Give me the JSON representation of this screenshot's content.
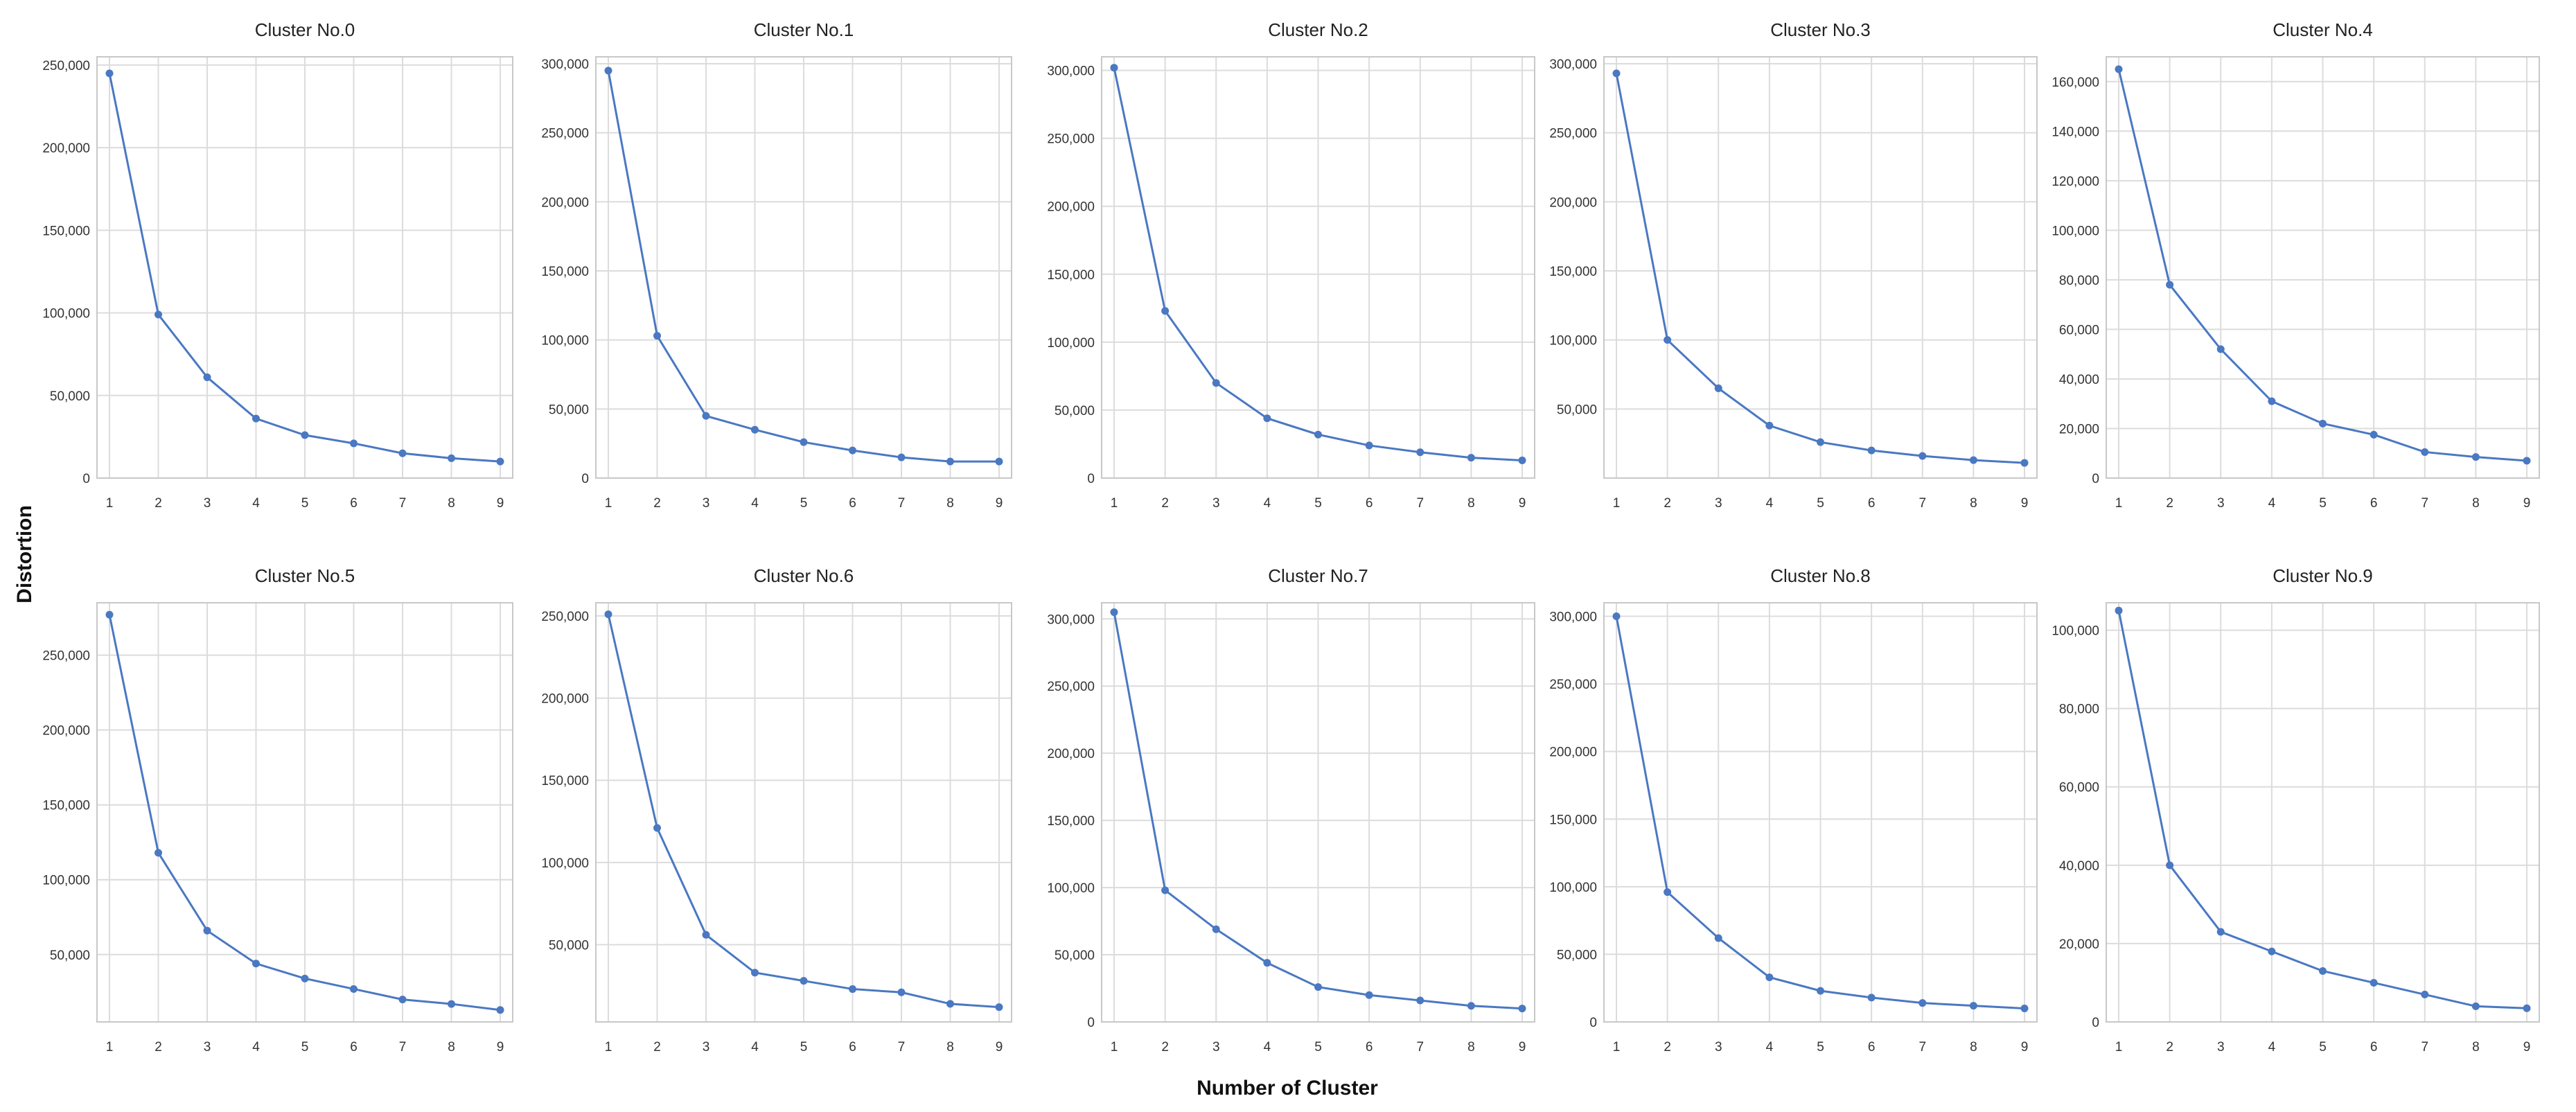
{
  "ylabel": "Distortion",
  "xlabel": "Number of Cluster",
  "line_color": "#4a78c2",
  "chart_data": [
    {
      "type": "line",
      "title": "Cluster No.0",
      "categories": [
        1,
        2,
        3,
        4,
        5,
        6,
        7,
        8,
        9
      ],
      "values": [
        245000,
        99000,
        61000,
        36000,
        26000,
        21000,
        15000,
        12000,
        10000
      ],
      "ylim": [
        0,
        255000
      ],
      "yticks": [
        0,
        50000,
        100000,
        150000,
        200000,
        250000
      ],
      "yticklabels": [
        "0",
        "50,000",
        "100,000",
        "150,000",
        "200,000",
        "250,000"
      ]
    },
    {
      "type": "line",
      "title": "Cluster No.1",
      "categories": [
        1,
        2,
        3,
        4,
        5,
        6,
        7,
        8,
        9
      ],
      "values": [
        295000,
        103000,
        45000,
        35000,
        26000,
        20000,
        15000,
        12000,
        12000
      ],
      "ylim": [
        0,
        305000
      ],
      "yticks": [
        0,
        50000,
        100000,
        150000,
        200000,
        250000,
        300000
      ],
      "yticklabels": [
        "0",
        "50,000",
        "100,000",
        "150,000",
        "200,000",
        "250,000",
        "300,000"
      ]
    },
    {
      "type": "line",
      "title": "Cluster No.2",
      "categories": [
        1,
        2,
        3,
        4,
        5,
        6,
        7,
        8,
        9
      ],
      "values": [
        302000,
        123000,
        70000,
        44000,
        32000,
        24000,
        19000,
        15000,
        13000
      ],
      "ylim": [
        0,
        310000
      ],
      "yticks": [
        0,
        50000,
        100000,
        150000,
        200000,
        250000,
        300000
      ],
      "yticklabels": [
        "0",
        "50,000",
        "100,000",
        "150,000",
        "200,000",
        "250,000",
        "300,000"
      ]
    },
    {
      "type": "line",
      "title": "Cluster No.3",
      "categories": [
        1,
        2,
        3,
        4,
        5,
        6,
        7,
        8,
        9
      ],
      "values": [
        293000,
        100000,
        65000,
        38000,
        26000,
        20000,
        16000,
        13000,
        11000
      ],
      "ylim": [
        0,
        305000
      ],
      "yticks": [
        50000,
        100000,
        150000,
        200000,
        250000,
        300000
      ],
      "yticklabels": [
        "50,000",
        "100,000",
        "150,000",
        "200,000",
        "250,000",
        "300,000"
      ]
    },
    {
      "type": "line",
      "title": "Cluster No.4",
      "categories": [
        1,
        2,
        3,
        4,
        5,
        6,
        7,
        8,
        9
      ],
      "values": [
        165000,
        78000,
        52000,
        31000,
        22000,
        17500,
        10500,
        8500,
        7000
      ],
      "ylim": [
        0,
        170000
      ],
      "yticks": [
        0,
        20000,
        40000,
        60000,
        80000,
        100000,
        120000,
        140000,
        160000
      ],
      "yticklabels": [
        "0",
        "20,000",
        "40,000",
        "60,000",
        "80,000",
        "100,000",
        "120,000",
        "140,000",
        "160,000"
      ]
    },
    {
      "type": "line",
      "title": "Cluster No.5",
      "categories": [
        1,
        2,
        3,
        4,
        5,
        6,
        7,
        8,
        9
      ],
      "values": [
        277000,
        118000,
        66000,
        44000,
        34000,
        27000,
        20000,
        17000,
        13000
      ],
      "ylim": [
        5000,
        285000
      ],
      "yticks": [
        50000,
        100000,
        150000,
        200000,
        250000
      ],
      "yticklabels": [
        "50,000",
        "100,000",
        "150,000",
        "200,000",
        "250,000"
      ]
    },
    {
      "type": "line",
      "title": "Cluster No.6",
      "categories": [
        1,
        2,
        3,
        4,
        5,
        6,
        7,
        8,
        9
      ],
      "values": [
        251000,
        121000,
        56000,
        33000,
        28000,
        23000,
        21000,
        14000,
        12000
      ],
      "ylim": [
        3000,
        258000
      ],
      "yticks": [
        50000,
        100000,
        150000,
        200000,
        250000
      ],
      "yticklabels": [
        "50,000",
        "100,000",
        "150,000",
        "200,000",
        "250,000"
      ]
    },
    {
      "type": "line",
      "title": "Cluster No.7",
      "categories": [
        1,
        2,
        3,
        4,
        5,
        6,
        7,
        8,
        9
      ],
      "values": [
        305000,
        98000,
        69000,
        44000,
        26000,
        20000,
        16000,
        12000,
        10000
      ],
      "ylim": [
        0,
        312000
      ],
      "yticks": [
        0,
        50000,
        100000,
        150000,
        200000,
        250000,
        300000
      ],
      "yticklabels": [
        "0",
        "50,000",
        "100,000",
        "150,000",
        "200,000",
        "250,000",
        "300,000"
      ]
    },
    {
      "type": "line",
      "title": "Cluster No.8",
      "categories": [
        1,
        2,
        3,
        4,
        5,
        6,
        7,
        8,
        9
      ],
      "values": [
        300000,
        96000,
        62000,
        33000,
        23000,
        18000,
        14000,
        12000,
        10000
      ],
      "ylim": [
        0,
        310000
      ],
      "yticks": [
        0,
        50000,
        100000,
        150000,
        200000,
        250000,
        300000
      ],
      "yticklabels": [
        "0",
        "50,000",
        "100,000",
        "150,000",
        "200,000",
        "250,000",
        "300,000"
      ]
    },
    {
      "type": "line",
      "title": "Cluster No.9",
      "categories": [
        1,
        2,
        3,
        4,
        5,
        6,
        7,
        8,
        9
      ],
      "values": [
        105000,
        40000,
        23000,
        18000,
        13000,
        10000,
        7000,
        4000,
        3500
      ],
      "ylim": [
        0,
        107000
      ],
      "yticks": [
        0,
        20000,
        40000,
        60000,
        80000,
        100000
      ],
      "yticklabels": [
        "0",
        "20,000",
        "40,000",
        "60,000",
        "80,000",
        "100,000"
      ]
    }
  ]
}
